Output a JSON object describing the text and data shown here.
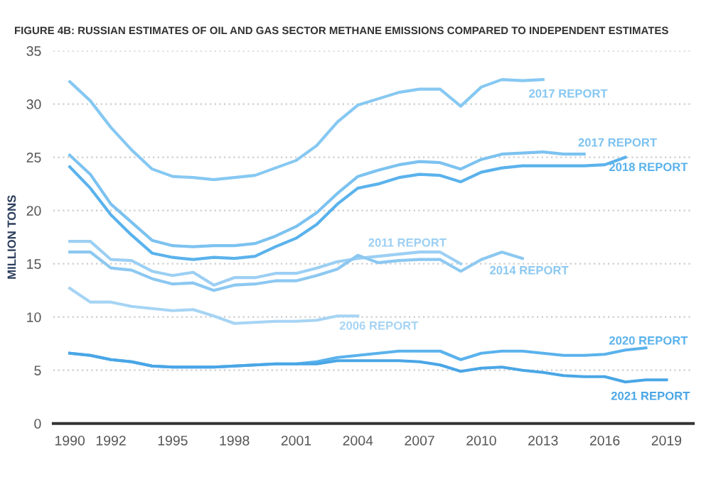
{
  "chart_data": {
    "type": "line",
    "title": "FIGURE 4B: RUSSIAN ESTIMATES OF OIL AND GAS SECTOR METHANE EMISSIONS COMPARED TO INDEPENDENT ESTIMATES",
    "ylabel": "MILLION TONS",
    "xlim": [
      1989.2,
      2020.3
    ],
    "xticks": [
      1990,
      1992,
      1995,
      1998,
      2001,
      2004,
      2007,
      2010,
      2013,
      2016,
      2019
    ],
    "ylim": [
      0,
      35
    ],
    "yticks": [
      0,
      5,
      10,
      15,
      20,
      25,
      30,
      35
    ],
    "grid": "y",
    "legend": false,
    "marker": "none",
    "line_style": "solid",
    "series": [
      {
        "name": "2017 REPORT",
        "color": "#86c8f2",
        "x": [
          1990,
          1991,
          1992,
          1993,
          1994,
          1995,
          1996,
          1997,
          1998,
          1999,
          2000,
          2001,
          2002,
          2003,
          2004,
          2005,
          2006,
          2007,
          2008,
          2009,
          2010,
          2011,
          2012,
          2013
        ],
        "values": [
          32.1,
          30.3,
          27.8,
          25.7,
          23.9,
          23.2,
          23.1,
          22.9,
          23.1,
          23.3,
          24.0,
          24.7,
          26.1,
          28.3,
          29.9,
          30.5,
          31.1,
          31.4,
          31.4,
          29.8,
          31.6,
          32.3,
          32.2,
          32.3
        ]
      },
      {
        "name": "2017 REPORT",
        "color": "#7cc2f0",
        "x": [
          1990,
          1991,
          1992,
          1993,
          1994,
          1995,
          1996,
          1997,
          1998,
          1999,
          2000,
          2001,
          2002,
          2003,
          2004,
          2005,
          2006,
          2007,
          2008,
          2009,
          2010,
          2011,
          2012,
          2013,
          2014,
          2015
        ],
        "values": [
          25.2,
          23.4,
          20.6,
          18.9,
          17.2,
          16.7,
          16.6,
          16.7,
          16.7,
          16.9,
          17.6,
          18.5,
          19.8,
          21.6,
          23.2,
          23.8,
          24.3,
          24.6,
          24.5,
          23.9,
          24.8,
          25.3,
          25.4,
          25.5,
          25.3,
          25.3
        ]
      },
      {
        "name": "2018 REPORT",
        "color": "#5ab2ec",
        "x": [
          1990,
          1991,
          1992,
          1993,
          1994,
          1995,
          1996,
          1997,
          1998,
          1999,
          2000,
          2001,
          2002,
          2003,
          2004,
          2005,
          2006,
          2007,
          2008,
          2009,
          2010,
          2011,
          2012,
          2013,
          2014,
          2015,
          2016,
          2017
        ],
        "values": [
          24.1,
          22.1,
          19.6,
          17.7,
          16.0,
          15.6,
          15.4,
          15.6,
          15.5,
          15.7,
          16.6,
          17.4,
          18.7,
          20.6,
          22.1,
          22.5,
          23.1,
          23.4,
          23.3,
          22.7,
          23.6,
          24.0,
          24.2,
          24.2,
          24.2,
          24.2,
          24.3,
          25.0
        ]
      },
      {
        "name": "2011 REPORT",
        "color": "#9ccff3",
        "x": [
          1990,
          1991,
          1992,
          1993,
          1994,
          1995,
          1996,
          1997,
          1998,
          1999,
          2000,
          2001,
          2002,
          2003,
          2004,
          2005,
          2006,
          2007,
          2008,
          2009
        ],
        "values": [
          17.1,
          17.1,
          15.4,
          15.3,
          14.3,
          13.9,
          14.2,
          13.0,
          13.7,
          13.7,
          14.1,
          14.1,
          14.6,
          15.2,
          15.5,
          15.7,
          15.9,
          16.1,
          16.1,
          15.0
        ]
      },
      {
        "name": "2014 REPORT",
        "color": "#8cc8f1",
        "x": [
          1990,
          1991,
          1992,
          1993,
          1994,
          1995,
          1996,
          1997,
          1998,
          1999,
          2000,
          2001,
          2002,
          2003,
          2004,
          2005,
          2006,
          2007,
          2008,
          2009,
          2010,
          2011,
          2012
        ],
        "values": [
          16.1,
          16.1,
          14.6,
          14.4,
          13.6,
          13.1,
          13.2,
          12.5,
          13.0,
          13.1,
          13.4,
          13.4,
          13.9,
          14.5,
          15.8,
          15.1,
          15.3,
          15.4,
          15.4,
          14.3,
          15.4,
          16.1,
          15.5
        ]
      },
      {
        "name": "2006 REPORT",
        "color": "#a6d4f4",
        "x": [
          1990,
          1991,
          1992,
          1993,
          1994,
          1995,
          1996,
          1997,
          1998,
          1999,
          2000,
          2001,
          2002,
          2003,
          2004
        ],
        "values": [
          12.7,
          11.4,
          11.4,
          11.0,
          10.8,
          10.6,
          10.7,
          10.1,
          9.4,
          9.5,
          9.6,
          9.6,
          9.7,
          10.1,
          10.1
        ]
      },
      {
        "name": "2020 REPORT",
        "color": "#5ab2ec",
        "x": [
          1990,
          1991,
          1992,
          1993,
          1994,
          1995,
          1996,
          1997,
          1998,
          1999,
          2000,
          2001,
          2002,
          2003,
          2004,
          2005,
          2006,
          2007,
          2008,
          2009,
          2010,
          2011,
          2012,
          2013,
          2014,
          2015,
          2016,
          2017,
          2018
        ],
        "values": [
          6.6,
          6.4,
          6.0,
          5.8,
          5.4,
          5.3,
          5.3,
          5.3,
          5.4,
          5.5,
          5.6,
          5.6,
          5.8,
          6.2,
          6.4,
          6.6,
          6.8,
          6.8,
          6.8,
          6.0,
          6.6,
          6.8,
          6.8,
          6.6,
          6.4,
          6.4,
          6.5,
          6.9,
          7.1
        ]
      },
      {
        "name": "2021 REPORT",
        "color": "#4aa6e6",
        "x": [
          1990,
          1991,
          1992,
          1993,
          1994,
          1995,
          1996,
          1997,
          1998,
          1999,
          2000,
          2001,
          2002,
          2003,
          2004,
          2005,
          2006,
          2007,
          2008,
          2009,
          2010,
          2011,
          2012,
          2013,
          2014,
          2015,
          2016,
          2017,
          2018,
          2019
        ],
        "values": [
          6.6,
          6.4,
          6.0,
          5.8,
          5.4,
          5.3,
          5.3,
          5.3,
          5.4,
          5.5,
          5.6,
          5.6,
          5.6,
          5.9,
          5.9,
          5.9,
          5.9,
          5.8,
          5.5,
          4.9,
          5.2,
          5.3,
          5.0,
          4.8,
          4.5,
          4.4,
          4.4,
          3.9,
          4.1,
          4.1
        ]
      }
    ]
  }
}
